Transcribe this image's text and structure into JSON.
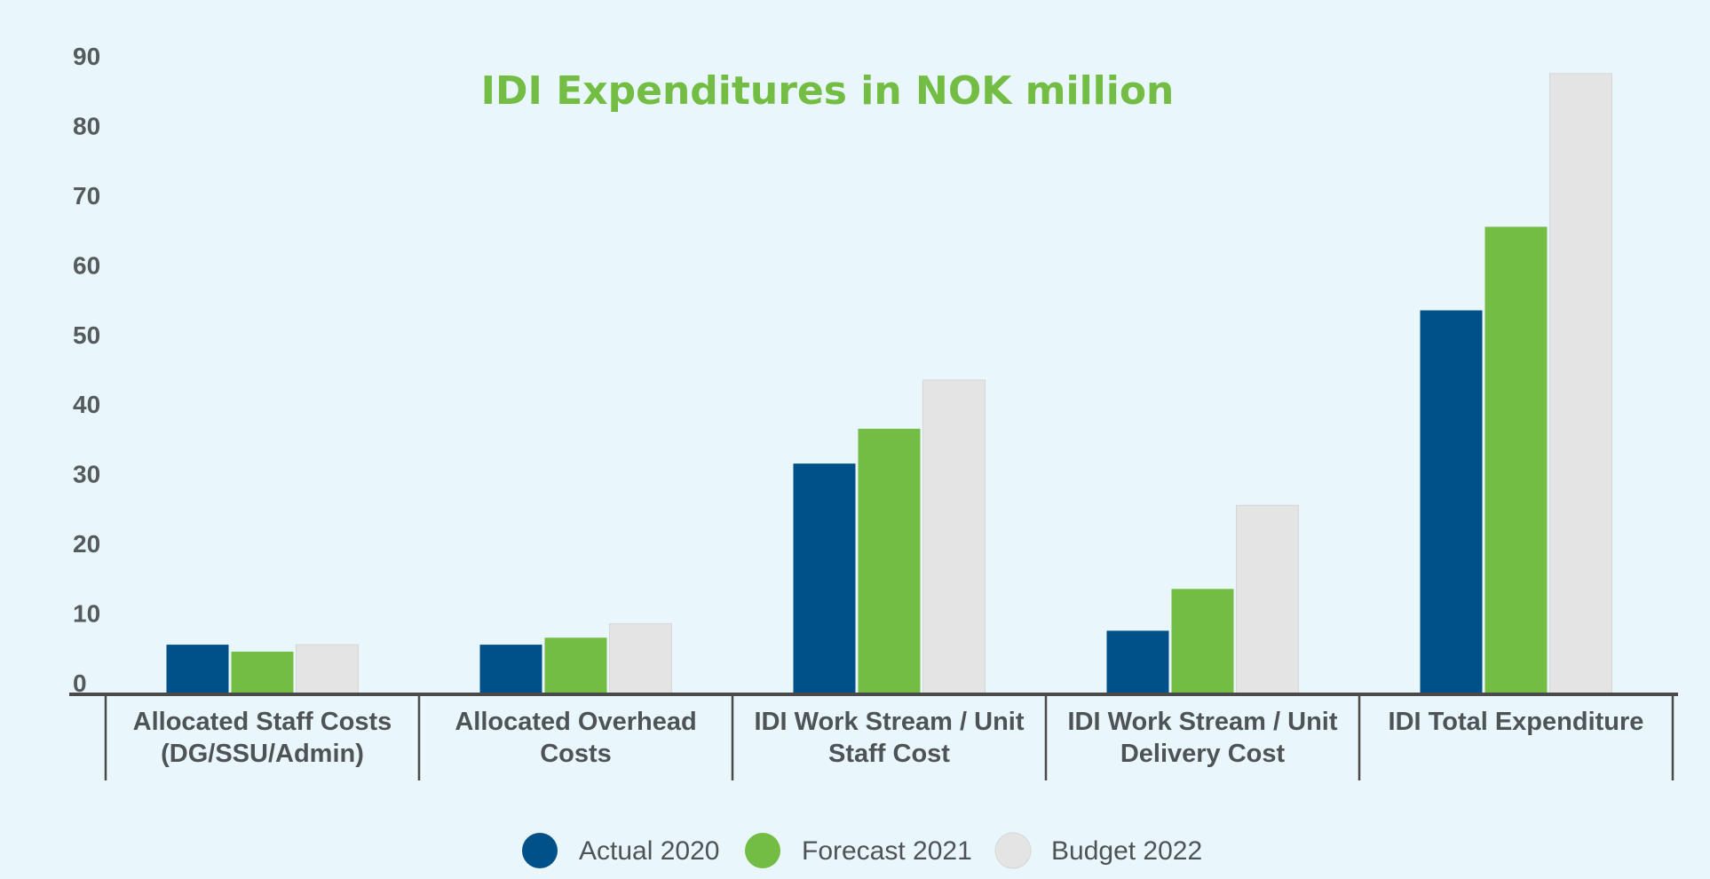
{
  "chart_data": {
    "type": "bar",
    "title": "IDI Expenditures in NOK million",
    "xlabel": "",
    "ylabel": "",
    "ylim": [
      0,
      90
    ],
    "yticks": [
      0,
      10,
      20,
      30,
      40,
      50,
      60,
      70,
      80,
      90
    ],
    "grid": false,
    "legend_position": "bottom",
    "categories": [
      [
        "Allocated Staff Costs",
        "(DG/SSU/Admin)"
      ],
      [
        "Allocated Overhead",
        "Costs"
      ],
      [
        "IDI Work Stream / Unit",
        "Staff Cost"
      ],
      [
        "IDI Work Stream / Unit",
        "Delivery Cost"
      ],
      [
        "IDI Total Expenditure"
      ]
    ],
    "series": [
      {
        "name": "Actual 2020",
        "color": "#005189",
        "values": [
          7,
          7,
          33,
          9,
          55
        ]
      },
      {
        "name": "Forecast 2021",
        "color": "#74bd44",
        "values": [
          6,
          8,
          38,
          15,
          67
        ]
      },
      {
        "name": "Budget 2022",
        "color": "#e4e4e4",
        "values": [
          7,
          10,
          45,
          27,
          89
        ]
      }
    ]
  }
}
